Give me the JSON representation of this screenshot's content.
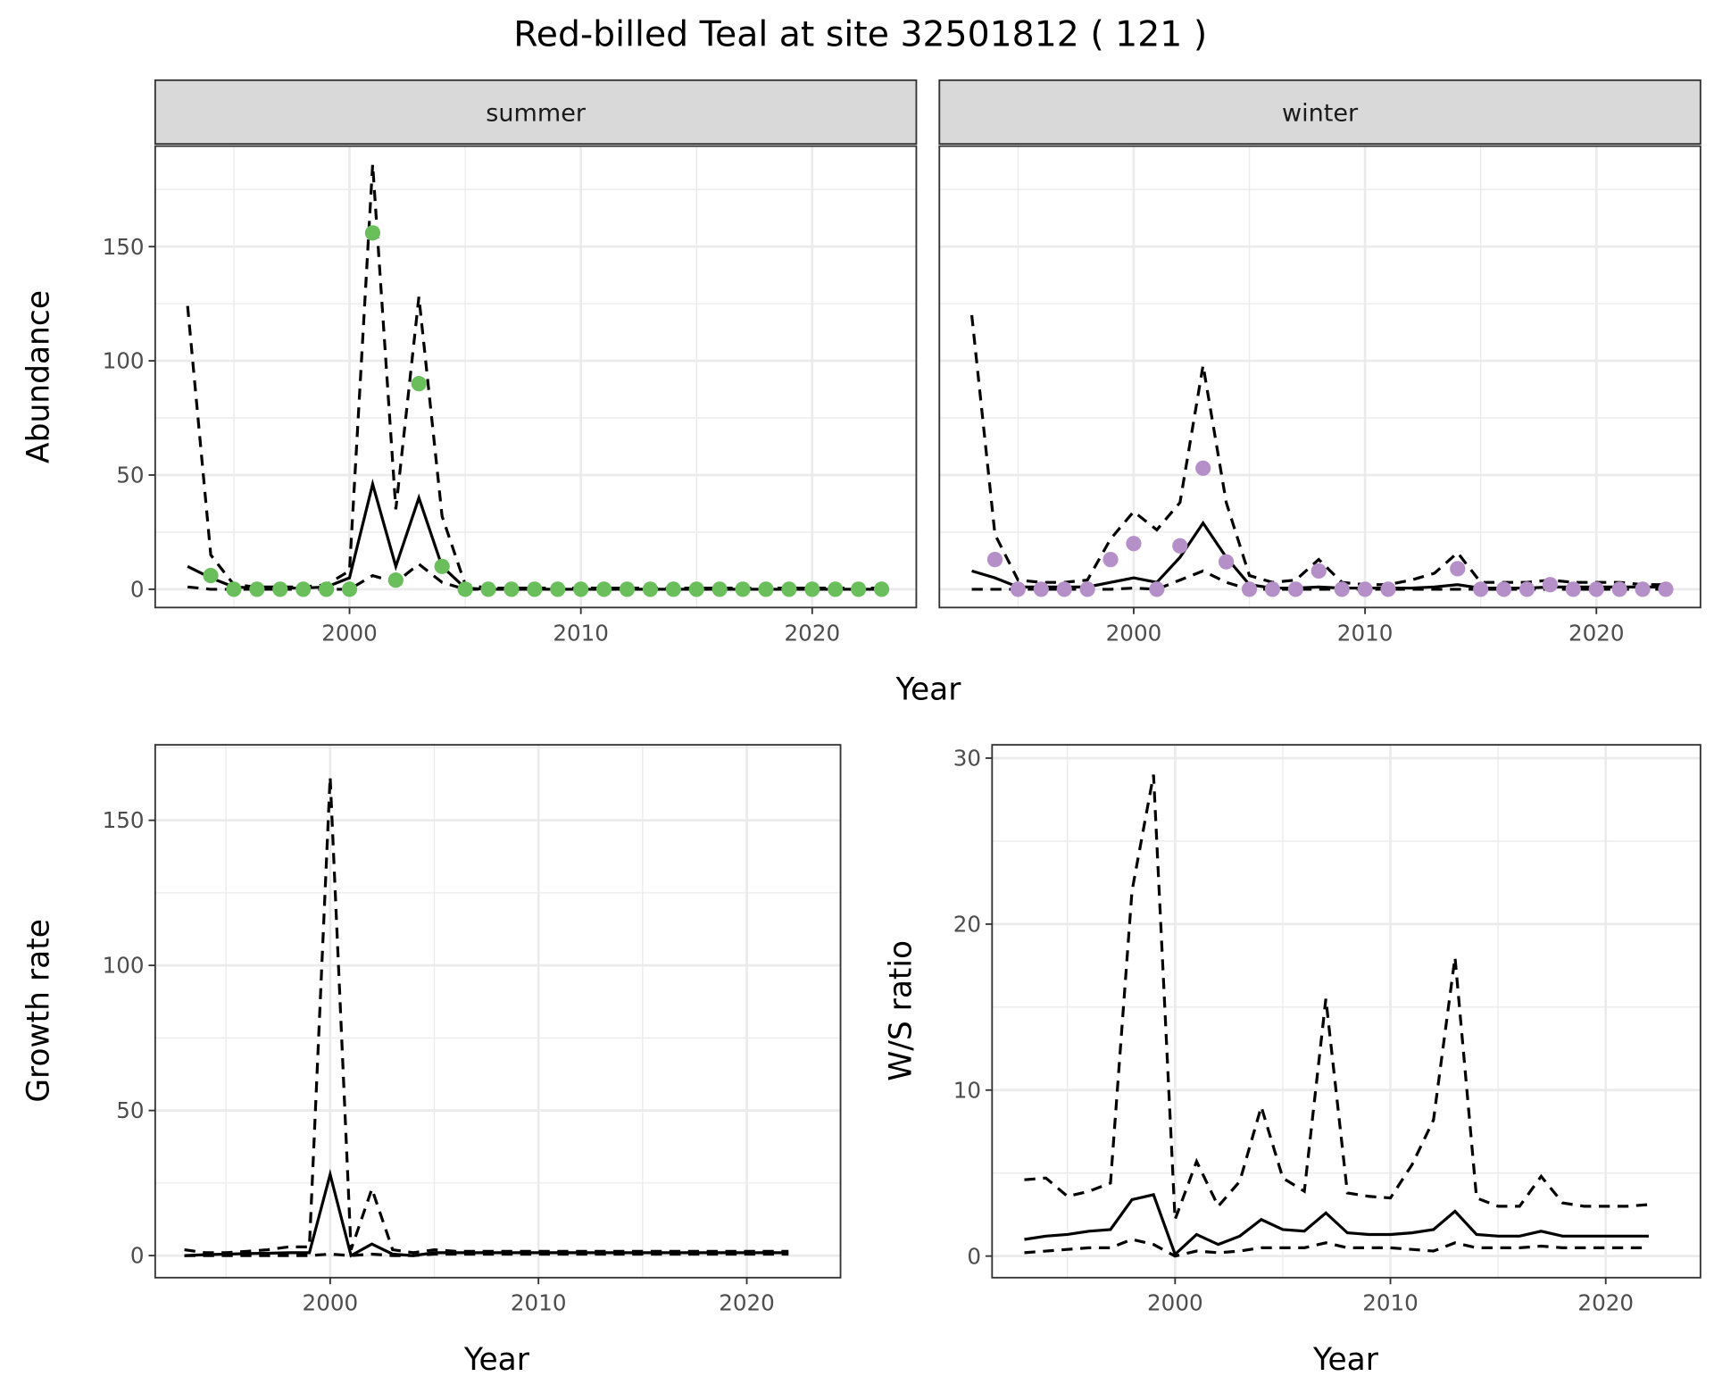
{
  "title": "Red-billed Teal at site 32501812 ( 121 )",
  "colors": {
    "summer_points": "#6abf5c",
    "winter_points": "#b590c8",
    "lines": "#000000",
    "strip": "#d9d9d9",
    "grid": "#ebebeb"
  },
  "chart_data": [
    {
      "type": "line",
      "facet": "summer",
      "xlabel": "Year",
      "ylabel": "Abundance",
      "xlim": [
        1991.6,
        2024.5
      ],
      "ylim": [
        -8,
        194
      ],
      "xticks": [
        2000,
        2010,
        2020
      ],
      "yticks": [
        0,
        50,
        100,
        150
      ],
      "grid": true,
      "point_color": "#6abf5c",
      "points": {
        "x": [
          1994,
          1995,
          1996,
          1997,
          1998,
          1999,
          2000,
          2001,
          2002,
          2003,
          2004,
          2005,
          2006,
          2007,
          2008,
          2009,
          2010,
          2011,
          2012,
          2013,
          2014,
          2015,
          2016,
          2017,
          2018,
          2019,
          2020,
          2021,
          2022,
          2023
        ],
        "y": [
          6,
          0,
          0,
          0,
          0,
          0,
          0,
          156,
          4,
          90,
          10,
          0,
          0,
          0,
          0,
          0,
          0,
          0,
          0,
          0,
          0,
          0,
          0,
          0,
          0,
          0,
          0,
          0,
          0,
          0
        ]
      },
      "x": [
        1993,
        1994,
        1995,
        1996,
        1997,
        1998,
        1999,
        2000,
        2001,
        2002,
        2003,
        2004,
        2005,
        2006,
        2007,
        2008,
        2009,
        2010,
        2011,
        2012,
        2013,
        2014,
        2015,
        2016,
        2017,
        2018,
        2019,
        2020,
        2021,
        2022,
        2023
      ],
      "fit": [
        10,
        5,
        1,
        0.5,
        0.5,
        0.5,
        1,
        5,
        46,
        10,
        40,
        10,
        0.5,
        0,
        0,
        0,
        0,
        0,
        0,
        0,
        0,
        0,
        0,
        0,
        0,
        0,
        0,
        0,
        0,
        0,
        0
      ],
      "upper": [
        124,
        15,
        2,
        1,
        1,
        1,
        2,
        8,
        186,
        35,
        128,
        32,
        2,
        0.5,
        0.5,
        0.5,
        0.5,
        0.5,
        0.5,
        0.5,
        0.5,
        0.5,
        0.5,
        0.5,
        0.5,
        0.5,
        0.5,
        0.5,
        0.5,
        0.5,
        0.5
      ],
      "lower": [
        1,
        0,
        0,
        0,
        0,
        0,
        0,
        0,
        6,
        3,
        11,
        3,
        0,
        0,
        0,
        0,
        0,
        0,
        0,
        0,
        0,
        0,
        0,
        0,
        0,
        0,
        0,
        0,
        0,
        0,
        0
      ]
    },
    {
      "type": "line",
      "facet": "winter",
      "xlabel": "Year",
      "ylabel": "Abundance",
      "xlim": [
        1991.6,
        2024.5
      ],
      "ylim": [
        -8,
        194
      ],
      "xticks": [
        2000,
        2010,
        2020
      ],
      "yticks": [
        0,
        50,
        100,
        150
      ],
      "grid": true,
      "point_color": "#b590c8",
      "points": {
        "x": [
          1994,
          1995,
          1996,
          1997,
          1998,
          1999,
          2000,
          2001,
          2002,
          2003,
          2004,
          2005,
          2006,
          2007,
          2008,
          2009,
          2010,
          2011,
          2014,
          2015,
          2016,
          2017,
          2018,
          2019,
          2020,
          2021,
          2022,
          2023
        ],
        "y": [
          13,
          0,
          0,
          0,
          0,
          13,
          20,
          0,
          19,
          53,
          12,
          0,
          0,
          0,
          8,
          0,
          0,
          0,
          9,
          0,
          0,
          0,
          2,
          0,
          0,
          0,
          0,
          0
        ]
      },
      "x": [
        1993,
        1994,
        1995,
        1996,
        1997,
        1998,
        1999,
        2000,
        2001,
        2002,
        2003,
        2004,
        2005,
        2006,
        2007,
        2008,
        2009,
        2010,
        2011,
        2012,
        2013,
        2014,
        2015,
        2016,
        2017,
        2018,
        2019,
        2020,
        2021,
        2022,
        2023
      ],
      "fit": [
        8,
        5,
        1,
        1,
        1,
        1,
        3,
        5,
        3,
        14,
        29,
        14,
        2,
        0.5,
        0.5,
        1,
        0.5,
        0.5,
        0.5,
        0.5,
        1,
        2,
        0.5,
        0.5,
        0.5,
        1,
        1,
        1,
        1,
        1,
        1
      ],
      "upper": [
        120,
        24,
        4,
        3,
        3,
        4,
        22,
        34,
        26,
        38,
        98,
        38,
        6,
        3,
        4,
        13,
        3,
        2,
        2,
        4,
        7,
        16,
        3,
        3,
        3,
        4,
        3,
        3,
        3,
        2,
        2
      ],
      "lower": [
        0,
        0,
        0,
        0,
        0,
        0,
        0,
        0.5,
        0,
        4,
        8,
        3,
        0,
        0,
        0,
        0,
        0,
        0,
        0,
        0,
        0,
        0,
        0,
        0,
        0,
        0,
        0,
        0,
        0,
        0,
        0
      ]
    },
    {
      "type": "line",
      "xlabel": "Year",
      "ylabel": "Growth rate",
      "xlim": [
        1991.6,
        2024.5
      ],
      "ylim": [
        -7.6,
        176
      ],
      "xticks": [
        2000,
        2010,
        2020
      ],
      "yticks": [
        0,
        50,
        100,
        150
      ],
      "grid": true,
      "x": [
        1993,
        1994,
        1995,
        1996,
        1997,
        1998,
        1999,
        2000,
        2001,
        2002,
        2003,
        2004,
        2005,
        2006,
        2007,
        2008,
        2009,
        2010,
        2011,
        2012,
        2013,
        2014,
        2015,
        2016,
        2017,
        2018,
        2019,
        2020,
        2021,
        2022
      ],
      "fit": [
        0,
        0.3,
        0.5,
        0.7,
        0.8,
        1,
        1,
        28,
        0,
        4,
        0.5,
        0,
        1,
        1,
        1,
        1,
        1,
        1,
        1,
        1,
        1,
        1,
        1,
        1,
        1,
        1,
        1,
        1,
        1,
        1
      ],
      "upper": [
        2,
        1,
        1,
        1.5,
        2,
        3,
        3,
        165,
        2,
        23,
        2,
        1,
        2,
        1.5,
        1.5,
        1.5,
        1.5,
        1.5,
        1.5,
        1.5,
        1.5,
        1.5,
        1.5,
        1.5,
        1.5,
        1.5,
        1.5,
        1.5,
        1.5,
        1.5
      ],
      "lower": [
        0,
        0,
        0,
        0,
        0,
        0,
        0,
        0.5,
        0,
        0.5,
        0,
        0,
        0.5,
        0.5,
        0.5,
        0.5,
        0.5,
        0.5,
        0.5,
        0.5,
        0.5,
        0.5,
        0.5,
        0.5,
        0.5,
        0.5,
        0.5,
        0.5,
        0.5,
        0.5
      ]
    },
    {
      "type": "line",
      "xlabel": "Year",
      "ylabel": "W/S ratio",
      "xlim": [
        1991.5,
        2024.4
      ],
      "ylim": [
        -1.3,
        30.8
      ],
      "xticks": [
        2000,
        2010,
        2020
      ],
      "yticks": [
        0,
        10,
        20,
        30
      ],
      "grid": true,
      "x": [
        1993,
        1994,
        1995,
        1996,
        1997,
        1998,
        1999,
        2000,
        2001,
        2002,
        2003,
        2004,
        2005,
        2006,
        2007,
        2008,
        2009,
        2010,
        2011,
        2012,
        2013,
        2014,
        2015,
        2016,
        2017,
        2018,
        2019,
        2020,
        2021,
        2022
      ],
      "fit": [
        1.0,
        1.2,
        1.3,
        1.5,
        1.6,
        3.4,
        3.7,
        0.1,
        1.3,
        0.7,
        1.2,
        2.2,
        1.6,
        1.5,
        2.6,
        1.4,
        1.3,
        1.3,
        1.4,
        1.6,
        2.7,
        1.3,
        1.2,
        1.2,
        1.5,
        1.2,
        1.2,
        1.2,
        1.2,
        1.2
      ],
      "upper": [
        4.6,
        4.7,
        3.6,
        3.9,
        4.4,
        22,
        29,
        2.2,
        5.7,
        3.0,
        4.5,
        9.0,
        4.7,
        3.9,
        15.5,
        3.8,
        3.6,
        3.5,
        5.5,
        8.2,
        18,
        3.5,
        3.0,
        3.0,
        4.8,
        3.2,
        3.0,
        3.0,
        3.0,
        3.1
      ],
      "lower": [
        0.2,
        0.3,
        0.4,
        0.5,
        0.5,
        1.0,
        0.7,
        0,
        0.3,
        0.2,
        0.3,
        0.5,
        0.5,
        0.5,
        0.8,
        0.5,
        0.5,
        0.5,
        0.4,
        0.3,
        0.8,
        0.5,
        0.5,
        0.5,
        0.6,
        0.5,
        0.5,
        0.5,
        0.5,
        0.5
      ]
    }
  ]
}
